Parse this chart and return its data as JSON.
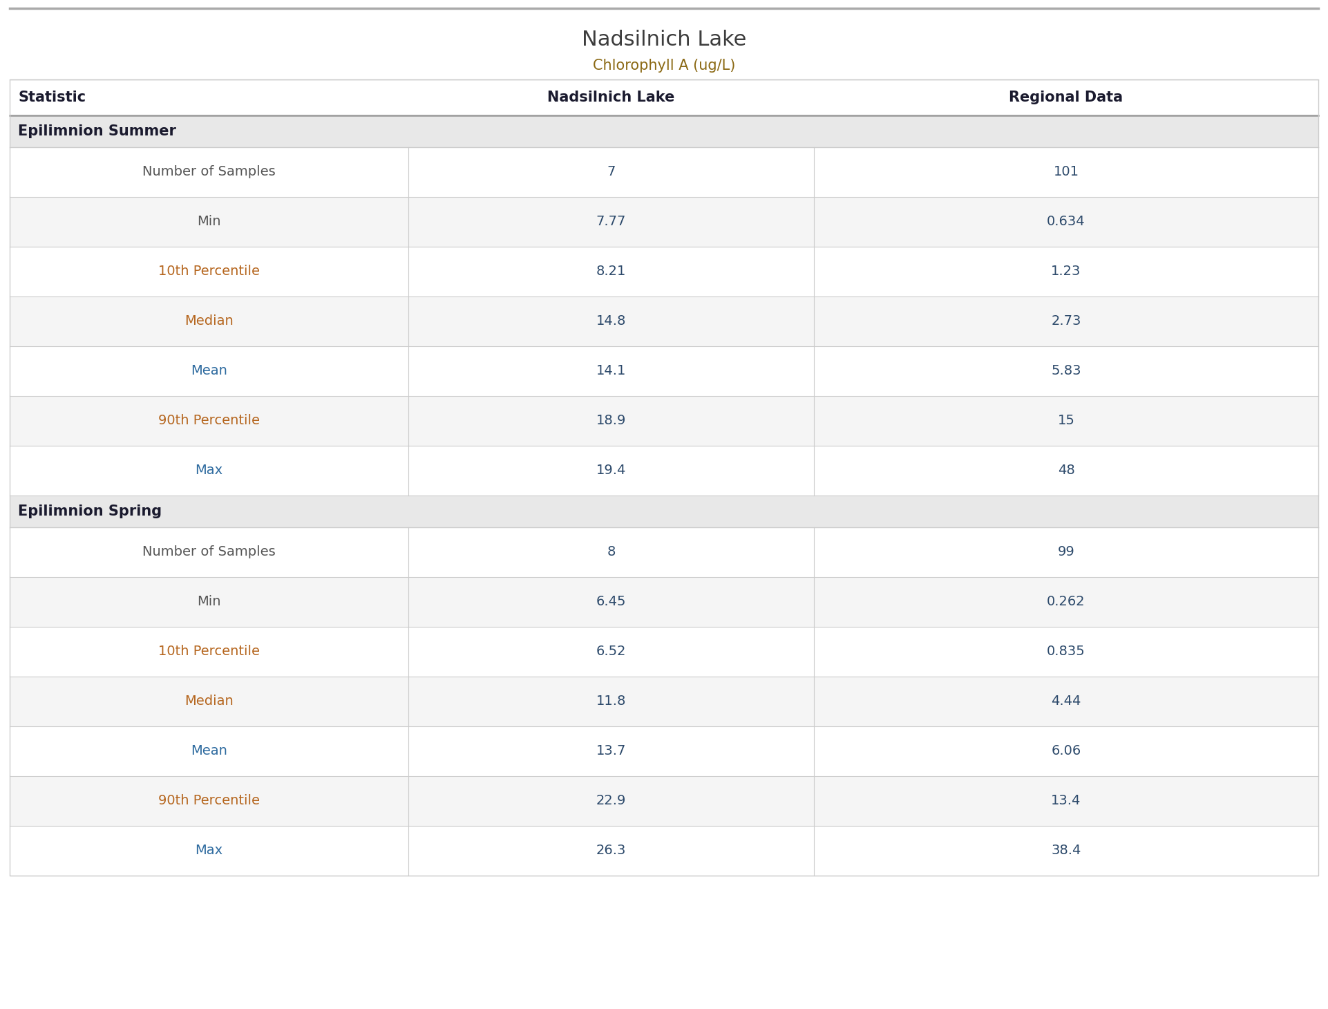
{
  "title": "Nadsilnich Lake",
  "subtitle": "Chlorophyll A (ug/L)",
  "title_color": "#3d3d3d",
  "subtitle_color": "#8b6914",
  "col_headers": [
    "Statistic",
    "Nadsilnich Lake",
    "Regional Data"
  ],
  "col_header_color": "#1a1a2e",
  "section_bg": "#e8e8e8",
  "section_text_color": "#1a1a2e",
  "row_bg_white": "#ffffff",
  "row_bg_gray": "#f5f5f5",
  "data_text_color": "#2d4a6b",
  "statistic_color_normal": "#555555",
  "statistic_color_orange": "#b5651d",
  "statistic_color_blue": "#2d6a9f",
  "sections": [
    {
      "name": "Epilimnion Summer",
      "rows": [
        {
          "statistic": "Number of Samples",
          "lake": "7",
          "regional": "101",
          "stat_color": "normal"
        },
        {
          "statistic": "Min",
          "lake": "7.77",
          "regional": "0.634",
          "stat_color": "normal"
        },
        {
          "statistic": "10th Percentile",
          "lake": "8.21",
          "regional": "1.23",
          "stat_color": "orange"
        },
        {
          "statistic": "Median",
          "lake": "14.8",
          "regional": "2.73",
          "stat_color": "orange"
        },
        {
          "statistic": "Mean",
          "lake": "14.1",
          "regional": "5.83",
          "stat_color": "blue"
        },
        {
          "statistic": "90th Percentile",
          "lake": "18.9",
          "regional": "15",
          "stat_color": "orange"
        },
        {
          "statistic": "Max",
          "lake": "19.4",
          "regional": "48",
          "stat_color": "blue"
        }
      ]
    },
    {
      "name": "Epilimnion Spring",
      "rows": [
        {
          "statistic": "Number of Samples",
          "lake": "8",
          "regional": "99",
          "stat_color": "normal"
        },
        {
          "statistic": "Min",
          "lake": "6.45",
          "regional": "0.262",
          "stat_color": "normal"
        },
        {
          "statistic": "10th Percentile",
          "lake": "6.52",
          "regional": "0.835",
          "stat_color": "orange"
        },
        {
          "statistic": "Median",
          "lake": "11.8",
          "regional": "4.44",
          "stat_color": "orange"
        },
        {
          "statistic": "Mean",
          "lake": "13.7",
          "regional": "6.06",
          "stat_color": "blue"
        },
        {
          "statistic": "90th Percentile",
          "lake": "22.9",
          "regional": "13.4",
          "stat_color": "orange"
        },
        {
          "statistic": "Max",
          "lake": "26.3",
          "regional": "38.4",
          "stat_color": "blue"
        }
      ]
    }
  ],
  "top_border_color": "#aaaaaa",
  "divider_color": "#cccccc",
  "header_divider_color": "#999999",
  "outer_border_color": "#cccccc",
  "title_fontsize": 22,
  "subtitle_fontsize": 15,
  "header_fontsize": 15,
  "section_fontsize": 15,
  "data_fontsize": 14
}
